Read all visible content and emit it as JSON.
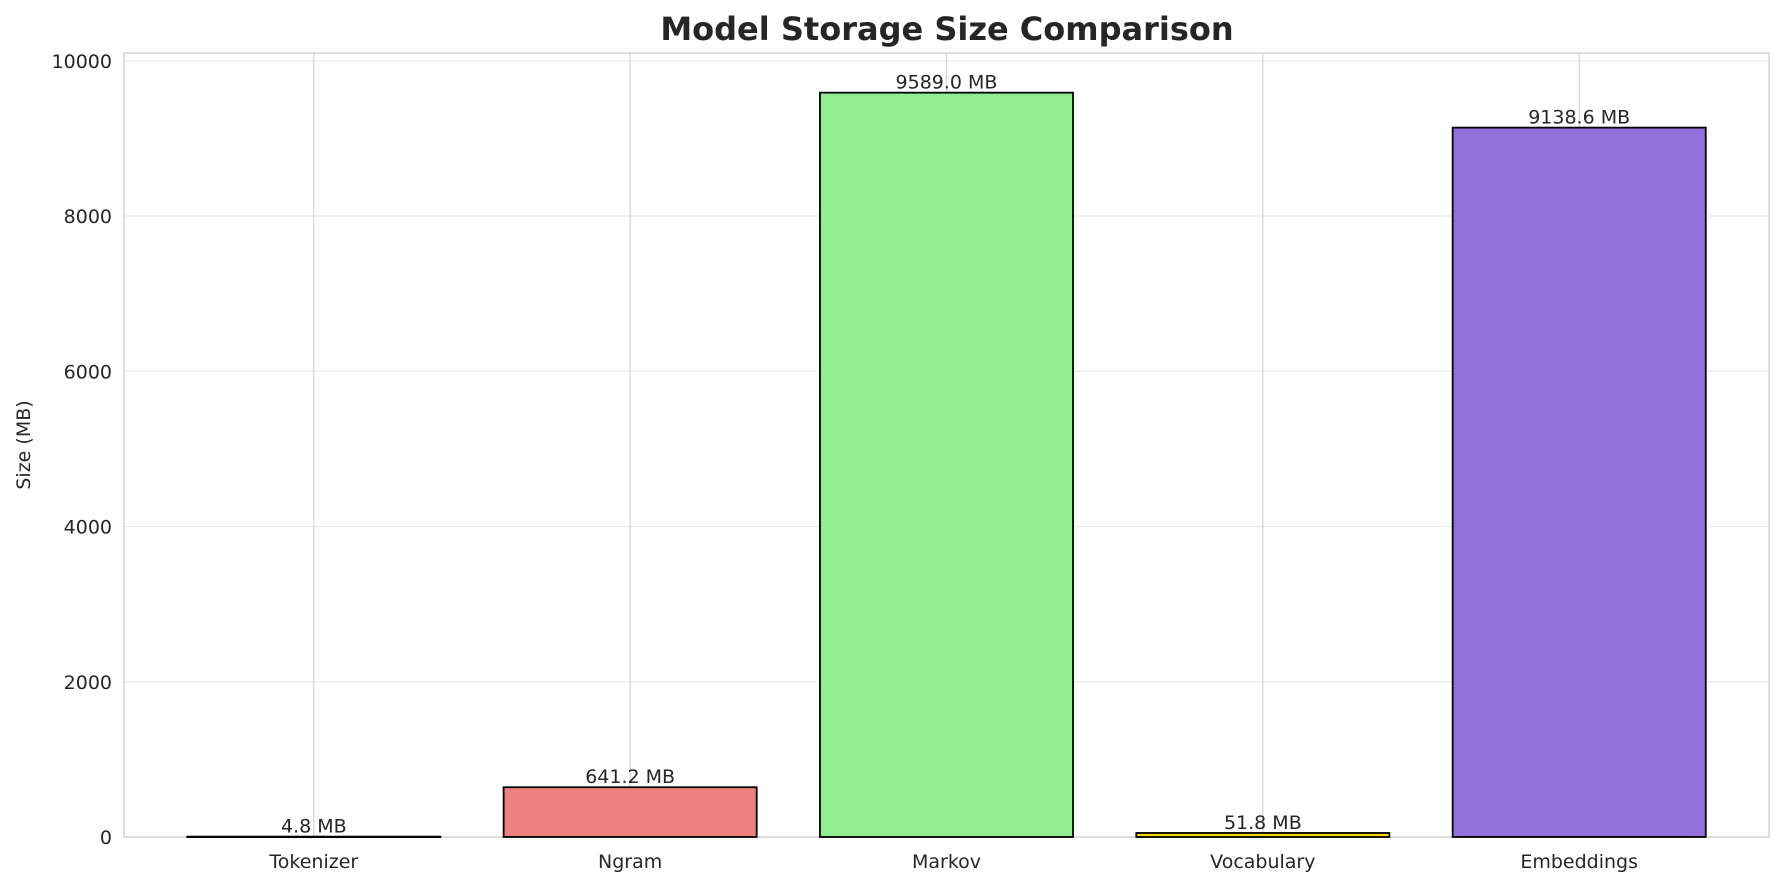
{
  "chart_data": {
    "type": "bar",
    "title": "Model Storage Size Comparison",
    "xlabel": "",
    "ylabel": "Size (MB)",
    "categories": [
      "Tokenizer",
      "Ngram",
      "Markov",
      "Vocabulary",
      "Embeddings"
    ],
    "values": [
      4.8,
      641.2,
      9589.0,
      51.8,
      9138.6
    ],
    "data_labels": [
      "4.8 MB",
      "641.2 MB",
      "9589.0 MB",
      "51.8 MB",
      "9138.6 MB"
    ],
    "colors": [
      "#87ceeb",
      "#f08080",
      "#90ee90",
      "#ffd700",
      "#9370db"
    ],
    "edge_color": "#000000",
    "ylim": [
      0,
      10100
    ],
    "yticks": [
      0,
      2000,
      4000,
      6000,
      8000,
      10000
    ],
    "ytick_labels": [
      "0",
      "2000",
      "4000",
      "6000",
      "8000",
      "10000"
    ],
    "grid": true,
    "grid_color": "#ebebeb",
    "spine_color": "#cccccc"
  }
}
